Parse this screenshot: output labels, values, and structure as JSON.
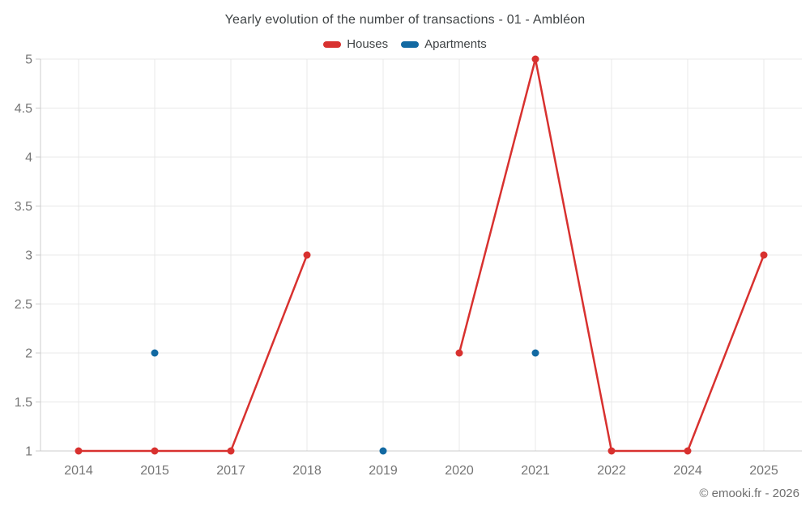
{
  "header": {
    "title": "Yearly evolution of the number of transactions - 01 - Ambléon"
  },
  "footer": {
    "watermark": "© emooki.fr - 2026"
  },
  "style": {
    "title_color": "#3f4345",
    "label_color": "#757575",
    "grid_color": "#e8e8e8",
    "axis_color": "#cccccc",
    "watermark_color": "#6e6e6e",
    "background": "#ffffff"
  },
  "chart_data": {
    "type": "line",
    "title": "Yearly evolution of the number of transactions - 01 - Ambléon",
    "xlabel": "",
    "ylabel": "",
    "categories": [
      "2014",
      "2015",
      "2017",
      "2018",
      "2019",
      "2020",
      "2021",
      "2022",
      "2024",
      "2025"
    ],
    "series": [
      {
        "name": "Houses",
        "color": "#d8312f",
        "values": [
          1,
          1,
          1,
          3,
          null,
          2,
          5,
          1,
          1,
          3
        ]
      },
      {
        "name": "Apartments",
        "color": "#1269a2",
        "values": [
          null,
          2,
          null,
          null,
          1,
          null,
          2,
          null,
          null,
          null
        ]
      }
    ],
    "ylim": [
      1,
      5
    ],
    "yticks": [
      1,
      1.5,
      2,
      2.5,
      3,
      3.5,
      4,
      4.5,
      5
    ],
    "grid": true,
    "legend_position": "top-center"
  }
}
